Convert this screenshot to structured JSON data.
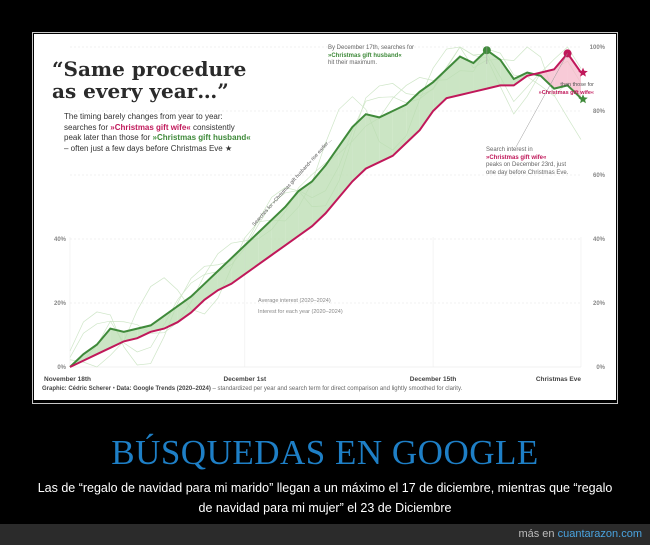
{
  "headline": "“Same procedure as every year…”",
  "subtext": {
    "p1": "The timing barely changes from year to year: searches for ",
    "wife": "»Christmas gift wife«",
    "p2": " consistently peak later than those for ",
    "husband": "»Christmas gift husband«",
    "p3": " – often just a few days before Christmas Eve ★"
  },
  "annotations": {
    "husband_peak_1": "By December 17th, searches for",
    "husband_peak_phrase": "»Christmas gift husband«",
    "husband_peak_2": "hit their maximum.",
    "wife_peak_1": "Search interest in",
    "wife_peak_phrase": "»Christmas gift wife«",
    "wife_peak_2": "peaks on December 23rd, just one day before Christmas Eve.",
    "later_1": "than those for",
    "later_phrase": "»Christmas gift wife«",
    "avg_1": "Average interest (2020–2024)",
    "avg_2": "Interest for each year (2020–2024)",
    "husband_line_label": "Searches for »Christmas gift husband« rise earlier…"
  },
  "credit": {
    "label": "Graphic: Cédric Scherer",
    "sep": " • ",
    "source": "Data: Google Trends (2020–2024)",
    "note": " – standardized per year and search term for direct comparison and lightly smoothed for clarity."
  },
  "banner": {
    "title": "BÚSQUEDAS EN GOOGLE",
    "subtitle": "Las de “regalo de navidad para mi marido” llegan a un máximo el 17 de diciembre, mientras que “regalo de navidad para mi mujer” el 23 de Diciembre"
  },
  "footer": {
    "prefix": "más en ",
    "site": "cuantarazon.com"
  },
  "colors": {
    "husband": "#3f8a3a",
    "wife": "#c0185a",
    "husband_fill": "#b9dcb0",
    "wife_fill": "#f6b8c9",
    "year_lines": "#cfe6c8"
  },
  "chart_data": {
    "type": "line",
    "x": [
      0,
      1,
      2,
      3,
      4,
      5,
      6,
      7,
      8,
      9,
      10,
      11,
      12,
      13,
      14,
      15,
      16,
      17,
      18,
      19,
      20,
      21,
      22,
      23,
      24,
      25,
      26,
      27,
      28,
      29,
      30,
      31,
      32,
      33,
      34,
      35,
      36,
      37,
      38
    ],
    "x_tick_positions": [
      0,
      13,
      27,
      38
    ],
    "x_tick_labels": [
      "November 18th",
      "December 1st",
      "December 15th",
      "Christmas Eve"
    ],
    "y_ticks": [
      0,
      20,
      40,
      60,
      80,
      100
    ],
    "y_tick_labels_left": [
      "0%",
      "20%",
      "40%",
      "",
      "",
      ""
    ],
    "y_tick_labels_right": [
      "0%",
      "20%",
      "40%",
      "60%",
      "80%",
      "100%"
    ],
    "ylim": [
      0,
      100
    ],
    "series": [
      {
        "name": "»Christmas gift husband«",
        "values": [
          0,
          4,
          7,
          12,
          11,
          12,
          13,
          16,
          19,
          22,
          26,
          30,
          34,
          38,
          42,
          46,
          50,
          55,
          58,
          63,
          69,
          75,
          79,
          78,
          80,
          82,
          86,
          89,
          93,
          97,
          95,
          99,
          96,
          90,
          92,
          91,
          87,
          88,
          84
        ]
      },
      {
        "name": "»Christmas gift wife«",
        "values": [
          0,
          2,
          4,
          6,
          8,
          9,
          11,
          12,
          14,
          17,
          21,
          24,
          26,
          29,
          32,
          35,
          38,
          41,
          44,
          48,
          53,
          58,
          62,
          64,
          66,
          70,
          74,
          80,
          84,
          85,
          86,
          87,
          88,
          88,
          91,
          92,
          93,
          98,
          92
        ]
      }
    ]
  }
}
